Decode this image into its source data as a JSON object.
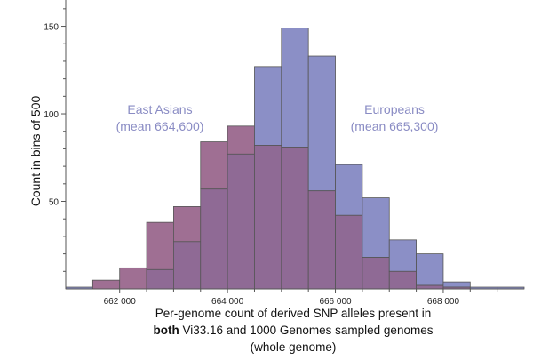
{
  "chart_data": {
    "type": "bar",
    "ylabel": "Count in bins of 500",
    "xlabel_lines": [
      [
        "Per-genome count of derived SNP alleles present in"
      ],
      [
        "both",
        " Vi33.16 and 1000 Genomes sampled genomes"
      ],
      [
        "(whole genome)"
      ]
    ],
    "xlim": [
      661000,
      669500
    ],
    "ylim": [
      0,
      165
    ],
    "x_ticks": [
      662000,
      664000,
      666000,
      668000
    ],
    "x_tick_labels": [
      "662 000",
      "664 000",
      "666 000",
      "668 000"
    ],
    "y_ticks": [
      50,
      100,
      150
    ],
    "y_tick_labels": [
      "50",
      "100",
      "150"
    ],
    "bin_width": 500,
    "bin_starts": [
      661000,
      661500,
      662000,
      662500,
      663000,
      663500,
      664000,
      664500,
      665000,
      665500,
      666000,
      666500,
      667000,
      667500,
      668000,
      668500,
      669000
    ],
    "series": [
      {
        "name": "East Asians",
        "color": "#9f6f93",
        "values": [
          0,
          5,
          12,
          38,
          47,
          84,
          93,
          82,
          81,
          56,
          42,
          18,
          10,
          2,
          1,
          0,
          0
        ]
      },
      {
        "name": "Europeans",
        "color": "#8b8fc6",
        "values": [
          1,
          0,
          0,
          11,
          27,
          57,
          77,
          127,
          149,
          133,
          71,
          52,
          28,
          20,
          4,
          1,
          1
        ]
      }
    ],
    "overlap_color": "#8f6a95",
    "annotations": [
      {
        "series": "East Asians",
        "lines": [
          "East Asians",
          "(mean 664,600)"
        ],
        "color": "#8a8cc4"
      },
      {
        "series": "Europeans",
        "lines": [
          "Europeans",
          "(mean 665,300)"
        ],
        "color": "#8a8cc4"
      }
    ],
    "grid": false,
    "legend": "none"
  }
}
